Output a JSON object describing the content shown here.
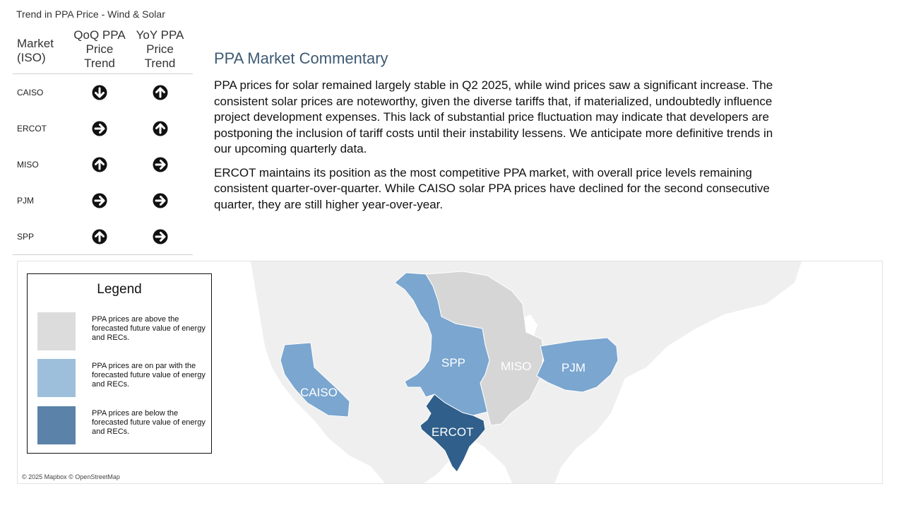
{
  "sheet_title": "Trend in PPA Price - Wind & Solar",
  "table": {
    "headers": {
      "market": "Market\n(ISO)",
      "qoq": "QoQ PPA\nPrice\nTrend",
      "yoy": "YoY PPA\nPrice\nTrend"
    },
    "rows": [
      {
        "market": "CAISO",
        "qoq": "down",
        "yoy": "up"
      },
      {
        "market": "ERCOT",
        "qoq": "flat",
        "yoy": "up"
      },
      {
        "market": "MISO",
        "qoq": "up",
        "yoy": "flat"
      },
      {
        "market": "PJM",
        "qoq": "flat",
        "yoy": "flat"
      },
      {
        "market": "SPP",
        "qoq": "up",
        "yoy": "flat"
      }
    ]
  },
  "commentary": {
    "title": "PPA Market Commentary",
    "paragraphs": [
      "PPA prices for solar remained largely stable in Q2 2025, while wind prices saw a significant increase. The consistent solar prices are noteworthy, given the diverse tariffs that, if materialized, undoubtedly influence project development expenses. This lack of substantial price fluctuation may indicate that developers are postponing the inclusion of tariff costs until their instability lessens. We anticipate more definitive trends in our upcoming quarterly data.",
      "ERCOT maintains its position as the most competitive PPA market, with overall price levels remaining consistent quarter-over-quarter. While CAISO solar PPA prices have declined for the second consecutive quarter, they are still higher year-over-year."
    ]
  },
  "legend": {
    "title": "Legend",
    "items": [
      {
        "label": "PPA prices are above the forecasted future value of energy and RECs.",
        "color": "#dcdcdc"
      },
      {
        "label": "PPA prices are on par with the forecasted future value of energy and RECs.",
        "color": "#9dbfdc"
      },
      {
        "label": "PPA prices are below the forecasted future value of energy and RECs.",
        "color": "#5b82a8"
      }
    ]
  },
  "map": {
    "attribution": "© 2025 Mapbox © OpenStreetMap",
    "regions": [
      {
        "name": "CAISO",
        "status": "on par",
        "color": "#7aa6d0"
      },
      {
        "name": "SPP",
        "status": "on par",
        "color": "#7aa6d0"
      },
      {
        "name": "MISO",
        "status": "above",
        "color": "#d6d6d6"
      },
      {
        "name": "PJM",
        "status": "on par",
        "color": "#7aa6d0"
      },
      {
        "name": "ERCOT",
        "status": "below",
        "color": "#2f5f8a"
      }
    ]
  }
}
